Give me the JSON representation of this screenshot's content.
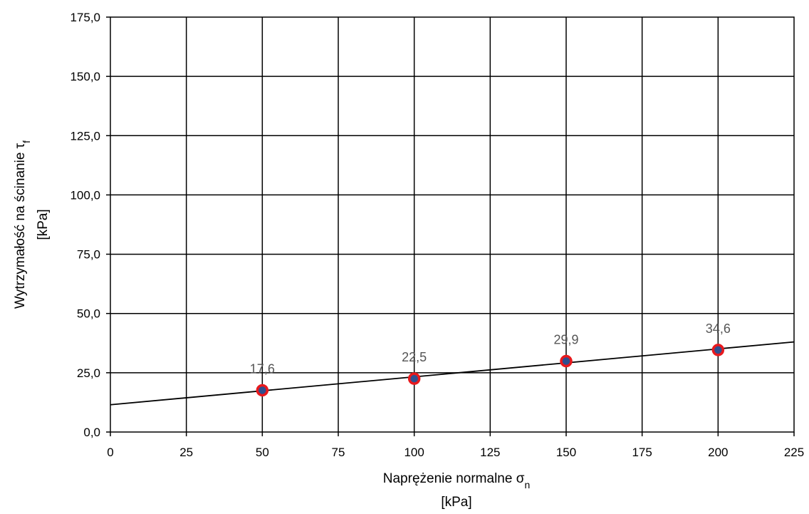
{
  "chart_data": {
    "type": "scatter",
    "title": "",
    "xlabel": {
      "prefix": "Naprężenie normalne σ",
      "sub": "n",
      "unit": "[kPa]"
    },
    "ylabel": {
      "prefix": "Wytrzymałość na ścinanie τ",
      "sub": "f",
      "unit": "[kPa]"
    },
    "xlim": [
      0,
      225
    ],
    "ylim": [
      0,
      175
    ],
    "x_ticks": [
      "0",
      "25",
      "50",
      "75",
      "100",
      "125",
      "150",
      "175",
      "200",
      "225"
    ],
    "y_ticks": [
      "0,0",
      "25,0",
      "50,0",
      "75,0",
      "100,0",
      "125,0",
      "150,0",
      "175,0"
    ],
    "grid": true,
    "legend": "none",
    "series": [
      {
        "x": [
          50,
          100,
          150,
          200
        ],
        "y": [
          17.6,
          22.5,
          29.9,
          34.6
        ],
        "data_labels": [
          "17,6",
          "22,5",
          "29,9",
          "34,6"
        ],
        "marker_color": "#e8191d",
        "marker_center_color": "#2f4f8f"
      }
    ],
    "trendline": {
      "type": "linear",
      "x": [
        0,
        225
      ],
      "y": [
        11.5,
        38.0
      ],
      "color": "#000000"
    }
  }
}
